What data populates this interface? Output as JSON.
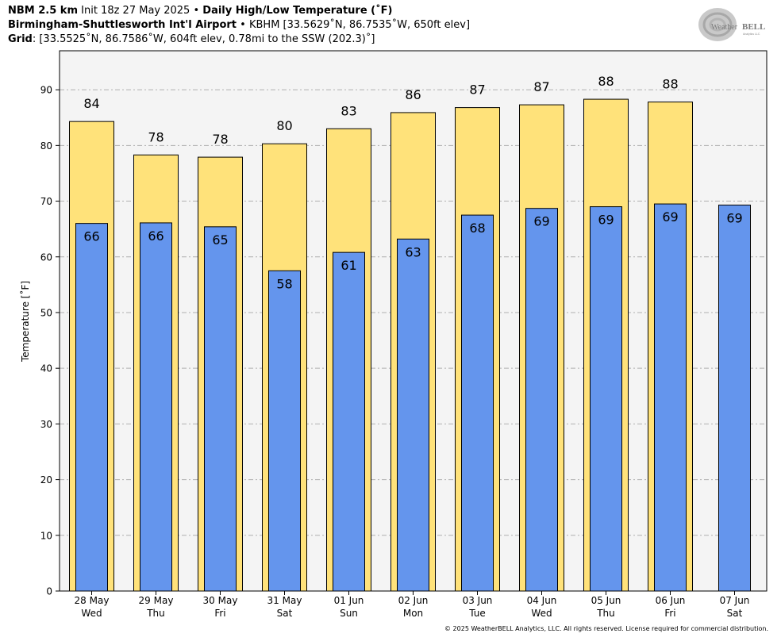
{
  "header": {
    "model": "NBM 2.5 km",
    "init": "Init 18z 27 May 2025",
    "sep": "•",
    "product": "Daily High/Low Temperature (˚F)",
    "station_name": "Birmingham-Shuttlesworth Int'l Airport",
    "station_info": "KBHM [33.5629˚N, 86.7535˚W, 650ft elev]",
    "grid_label": "Grid",
    "grid_info": ": [33.5525˚N, 86.7586˚W, 604ft elev, 0.78mi to the SSW (202.3)˚]"
  },
  "logo": {
    "text_weather": "Weather",
    "text_bell": "BELL",
    "sub": "Analytics LLC"
  },
  "copyright": "© 2025 WeatherBELL Analytics, LLC. All rights reserved. License required for commercial distribution.",
  "chart_data": {
    "type": "bar",
    "ylabel": "Temperature [˚F]",
    "ylim": [
      0,
      97
    ],
    "yticks": [
      0,
      10,
      20,
      30,
      40,
      50,
      60,
      70,
      80,
      90
    ],
    "grid": true,
    "categories": [
      {
        "date": "28 May",
        "day": "Wed"
      },
      {
        "date": "29 May",
        "day": "Thu"
      },
      {
        "date": "30 May",
        "day": "Fri"
      },
      {
        "date": "31 May",
        "day": "Sat"
      },
      {
        "date": "01 Jun",
        "day": "Sun"
      },
      {
        "date": "02 Jun",
        "day": "Mon"
      },
      {
        "date": "03 Jun",
        "day": "Tue"
      },
      {
        "date": "04 Jun",
        "day": "Wed"
      },
      {
        "date": "05 Jun",
        "day": "Thu"
      },
      {
        "date": "06 Jun",
        "day": "Fri"
      },
      {
        "date": "07 Jun",
        "day": "Sat"
      }
    ],
    "series": [
      {
        "key": "high",
        "color": "#FFE27A",
        "values": [
          84.3,
          78.3,
          77.9,
          80.3,
          83.0,
          85.9,
          86.8,
          87.3,
          88.3,
          87.8,
          null
        ],
        "labels": [
          "84",
          "78",
          "78",
          "80",
          "83",
          "86",
          "87",
          "87",
          "88",
          "88",
          null
        ]
      },
      {
        "key": "low",
        "color": "#6495ED",
        "values": [
          66.0,
          66.1,
          65.4,
          57.5,
          60.8,
          63.2,
          67.5,
          68.7,
          69.0,
          69.5,
          69.3
        ],
        "labels": [
          "66",
          "66",
          "65",
          "58",
          "61",
          "63",
          "68",
          "69",
          "69",
          "69",
          "69"
        ]
      }
    ]
  }
}
